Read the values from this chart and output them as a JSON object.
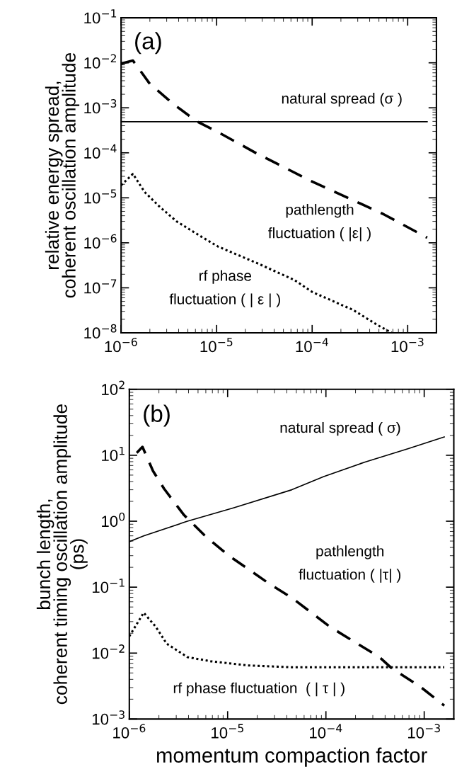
{
  "chart_data": [
    {
      "type": "line",
      "log": "xy",
      "ylabel": "relative energy spread,\ncoherent oscillation amplitude",
      "annotations": [
        "(a)",
        "natural spread (σ )",
        "pathlength\nfluctuation ( |ε| )",
        "rf phase\nfluctuation ( | ε | )"
      ],
      "xlim": [
        1e-06,
        0.002
      ],
      "ylim": [
        1e-08,
        0.1
      ],
      "xticks": [
        {
          "value": 1e-06,
          "label": "10$^{−6}$"
        },
        {
          "value": 1e-05,
          "label": "10$^{−5}$"
        },
        {
          "value": 0.0001,
          "label": "10$^{−4}$"
        },
        {
          "value": 0.001,
          "label": "10$^{−3}$"
        }
      ],
      "yticks": [
        {
          "value": 1e-08,
          "label": "10$^{−8}$"
        },
        {
          "value": 1e-07,
          "label": "10$^{−7}$"
        },
        {
          "value": 1e-06,
          "label": "10$^{−6}$"
        },
        {
          "value": 1e-05,
          "label": "10$^{−5}$"
        },
        {
          "value": 0.0001,
          "label": "10$^{−4}$"
        },
        {
          "value": 0.001,
          "label": "10$^{−3}$"
        },
        {
          "value": 0.01,
          "label": "10$^{−2}$"
        },
        {
          "value": 0.1,
          "label": "10$^{−1}$"
        }
      ],
      "grid": false,
      "legend": false,
      "series": [
        {
          "color": "#000000",
          "line_style": "solid",
          "x": [
            1e-06,
            0.0016
          ],
          "values": [
            0.00049,
            0.00049
          ]
        },
        {
          "color": "#000000",
          "line_style": "dashed",
          "x": [
            1e-06,
            1.33e-06,
            2e-06,
            3.6e-06,
            6.1e-06,
            1e-05,
            2.6e-05,
            0.0001,
            0.00055,
            0.0016
          ],
          "values": [
            0.0096,
            0.0112,
            0.0034,
            0.00117,
            0.00051,
            0.0003,
            9.8e-05,
            2.3e-05,
            4.4e-06,
            1.3e-06
          ]
        },
        {
          "color": "#000000",
          "line_style": "dotted",
          "x": [
            1e-06,
            1.33e-06,
            1.76e-06,
            2.5e-06,
            3.8e-06,
            6.8e-06,
            1.03e-05,
            2.6e-05,
            6.5e-05,
            0.0001,
            0.00027,
            0.00048,
            0.00068
          ],
          "values": [
            1.9e-05,
            3.4e-05,
            1.35e-05,
            6.5e-06,
            3e-06,
            1.4e-06,
            8.3e-07,
            3.6e-07,
            1.5e-07,
            8.1e-08,
            3.2e-08,
            1.5e-08,
            1e-08
          ]
        }
      ]
    },
    {
      "type": "line",
      "log": "xy",
      "xlabel": "momentum compaction factor",
      "ylabel": "bunch length,\ncoherent timing oscillation amplitude\n(ps)",
      "annotations": [
        "(b)",
        "natural spread ( σ)",
        "pathlength\nfluctuation ( |τ| )",
        "rf phase fluctuation  ( | τ | )"
      ],
      "xlim": [
        1e-06,
        0.002
      ],
      "ylim": [
        0.001,
        100.0
      ],
      "xticks": [
        {
          "value": 1e-06,
          "label": "10$^{−6}$"
        },
        {
          "value": 1e-05,
          "label": "10$^{−5}$"
        },
        {
          "value": 0.0001,
          "label": "10$^{−4}$"
        },
        {
          "value": 0.001,
          "label": "10$^{−3}$"
        }
      ],
      "yticks": [
        {
          "value": 0.001,
          "label": "10$^{−3}$"
        },
        {
          "value": 0.01,
          "label": "10$^{−2}$"
        },
        {
          "value": 0.1,
          "label": "10$^{−1}$"
        },
        {
          "value": 1,
          "label": "10$^{0}$"
        },
        {
          "value": 10,
          "label": "10$^{1}$"
        },
        {
          "value": 100,
          "label": "10$^{2}$"
        }
      ],
      "grid": false,
      "legend": false,
      "series": [
        {
          "color": "#000000",
          "line_style": "solid",
          "x": [
            1e-06,
            1.4e-06,
            3.9e-06,
            1.16e-05,
            4.5e-05,
            9.5e-05,
            0.00025,
            0.00069,
            0.0016
          ],
          "values": [
            0.49,
            0.6,
            1.0,
            1.6,
            3.0,
            4.75,
            7.9,
            12.6,
            19
          ]
        },
        {
          "color": "#000000",
          "line_style": "dashed",
          "x": [
            1.19e-06,
            1.36e-06,
            1.74e-06,
            2.26e-06,
            3.6e-06,
            5.9e-06,
            1e-05,
            2.6e-05,
            4.5e-05,
            0.00011,
            0.00035,
            0.00046,
            0.00091,
            0.0016
          ],
          "values": [
            10.9,
            13.4,
            5.8,
            3.1,
            1.24,
            0.6,
            0.31,
            0.115,
            0.069,
            0.025,
            0.0087,
            0.006,
            0.0031,
            0.0016
          ]
        },
        {
          "color": "#000000",
          "line_style": "dotted",
          "x": [
            1e-06,
            1.4e-06,
            1.86e-06,
            2.4e-06,
            3.9e-06,
            6.8e-06,
            1.63e-05,
            4.5e-05,
            0.0016
          ],
          "values": [
            0.018,
            0.041,
            0.025,
            0.0139,
            0.0087,
            0.0075,
            0.0065,
            0.0061,
            0.0061
          ]
        }
      ]
    }
  ]
}
